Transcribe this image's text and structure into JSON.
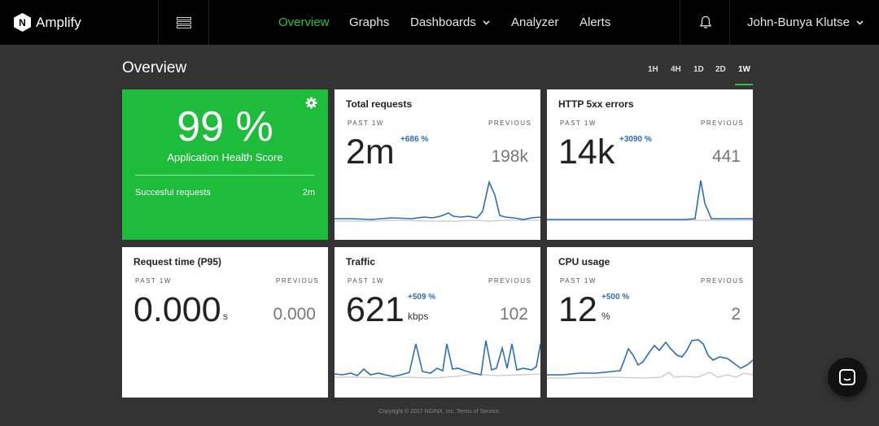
{
  "brand": {
    "name": "Amplify",
    "logo_letter": "N"
  },
  "nav": {
    "overview": "Overview",
    "graphs": "Graphs",
    "dashboards": "Dashboards",
    "analyzer": "Analyzer",
    "alerts": "Alerts"
  },
  "user": {
    "name": "John-Bunya Klutse"
  },
  "page": {
    "title": "Overview"
  },
  "ranges": [
    "1H",
    "4H",
    "1D",
    "2D",
    "1W"
  ],
  "selected_range": "1W",
  "health": {
    "score": "99 %",
    "label": "Application Health Score",
    "requests_label": "Succesful requests",
    "requests_value": "2m"
  },
  "labels": {
    "current": "PAST 1W",
    "previous": "PREVIOUS"
  },
  "cards": {
    "total_requests": {
      "title": "Total requests",
      "value": "2m",
      "delta": "+686 %",
      "previous": "198k"
    },
    "http5xx": {
      "title": "HTTP 5xx errors",
      "value": "14k",
      "delta": "+3090 %",
      "previous": "441"
    },
    "request_time": {
      "title": "Request time (P95)",
      "value": "0.000",
      "unit": "s",
      "previous": "0.000"
    },
    "traffic": {
      "title": "Traffic",
      "value": "621",
      "delta": "+509 %",
      "unit": "kbps",
      "previous": "102"
    },
    "cpu": {
      "title": "CPU usage",
      "value": "12",
      "delta": "+500 %",
      "unit": "%",
      "previous": "2"
    }
  },
  "footer": "Copyright © 2017 NGINX, Inc. Terms of Service.",
  "colors": {
    "accent": "#24c445",
    "health_bg": "#1ebc3b",
    "series_current": "#2a6fb5",
    "series_previous": "#c8c8c8"
  },
  "icons": {
    "menu": "list-icon",
    "bell": "bell-icon",
    "gear": "gear-icon",
    "chat": "chat-icon",
    "chevron": "chevron-down-icon"
  }
}
